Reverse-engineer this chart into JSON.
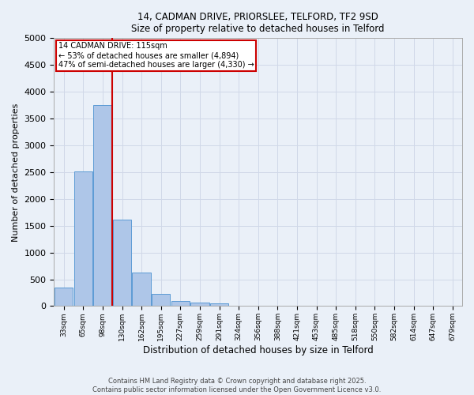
{
  "title_line1": "14, CADMAN DRIVE, PRIORSLEE, TELFORD, TF2 9SD",
  "title_line2": "Size of property relative to detached houses in Telford",
  "xlabel": "Distribution of detached houses by size in Telford",
  "ylabel": "Number of detached properties",
  "bin_labels": [
    "33sqm",
    "65sqm",
    "98sqm",
    "130sqm",
    "162sqm",
    "195sqm",
    "227sqm",
    "259sqm",
    "291sqm",
    "324sqm",
    "356sqm",
    "388sqm",
    "421sqm",
    "453sqm",
    "485sqm",
    "518sqm",
    "550sqm",
    "582sqm",
    "614sqm",
    "647sqm",
    "679sqm"
  ],
  "bar_heights": [
    350,
    2520,
    3750,
    1620,
    620,
    230,
    100,
    60,
    55,
    0,
    0,
    0,
    0,
    0,
    0,
    0,
    0,
    0,
    0,
    0,
    0
  ],
  "bar_color": "#aec6e8",
  "bar_edge_color": "#5b9bd5",
  "red_line_bin": 2.5,
  "annotation_text": "14 CADMAN DRIVE: 115sqm\n← 53% of detached houses are smaller (4,894)\n47% of semi-detached houses are larger (4,330) →",
  "annotation_box_color": "#ffffff",
  "annotation_box_edge_color": "#cc0000",
  "ylim": [
    0,
    5000
  ],
  "yticks": [
    0,
    500,
    1000,
    1500,
    2000,
    2500,
    3000,
    3500,
    4000,
    4500,
    5000
  ],
  "grid_color": "#d0d8e8",
  "background_color": "#eaf0f8",
  "footer_line1": "Contains HM Land Registry data © Crown copyright and database right 2025.",
  "footer_line2": "Contains public sector information licensed under the Open Government Licence v3.0."
}
